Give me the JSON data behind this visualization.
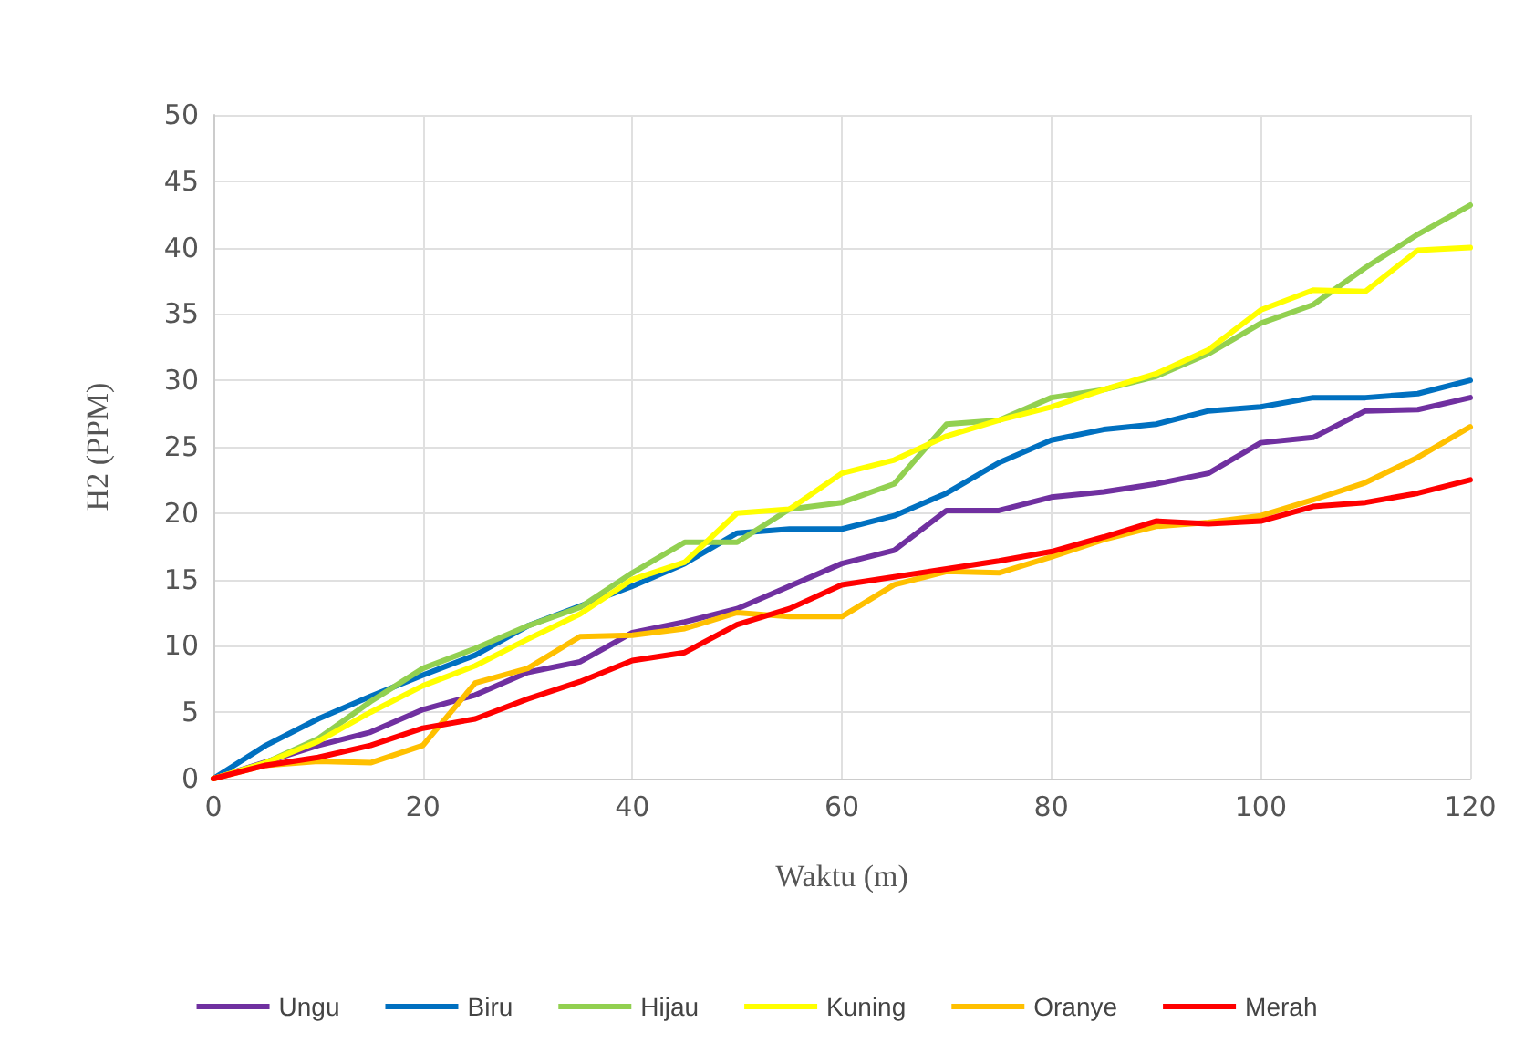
{
  "chart_data": {
    "type": "line",
    "xlabel": "Waktu (m)",
    "ylabel": "H2 (PPM)",
    "x": [
      0,
      5,
      10,
      15,
      20,
      25,
      30,
      35,
      40,
      45,
      50,
      55,
      60,
      65,
      70,
      75,
      80,
      85,
      90,
      95,
      100,
      105,
      110,
      115,
      120
    ],
    "xlim": [
      0,
      120
    ],
    "xticks": [
      0,
      20,
      40,
      60,
      80,
      100,
      120
    ],
    "ylim": [
      0,
      50
    ],
    "yticks": [
      0,
      5,
      10,
      15,
      20,
      25,
      30,
      35,
      40,
      45,
      50
    ],
    "grid": true,
    "legend": "bottom",
    "marker": "none",
    "line_style": "solid",
    "series": [
      {
        "name": "Ungu",
        "color": "#7030a0",
        "values": [
          0,
          null,
          2.5,
          3.5,
          5.2,
          6.3,
          8,
          8.8,
          11,
          11.8,
          12.8,
          14.5,
          16.2,
          17.2,
          20.2,
          20.2,
          21.2,
          21.6,
          22.2,
          23,
          25.3,
          25.7,
          27.7,
          27.8,
          28.7
        ]
      },
      {
        "name": "Biru",
        "color": "#0070c0",
        "values": [
          0,
          2.5,
          4.5,
          6.2,
          7.8,
          9.3,
          11.5,
          13,
          14.5,
          16.2,
          18.5,
          18.8,
          18.8,
          19.8,
          21.5,
          23.8,
          25.5,
          26.3,
          26.7,
          27.7,
          28,
          28.7,
          28.7,
          29,
          30
        ]
      },
      {
        "name": "Hijau",
        "color": "#92d050",
        "values": [
          0,
          1.2,
          3,
          5.8,
          8.3,
          9.8,
          11.5,
          12.9,
          15.5,
          17.8,
          17.8,
          20.3,
          20.8,
          22.2,
          26.7,
          27,
          28.7,
          29.3,
          30.3,
          32,
          34.3,
          35.7,
          38.5,
          41,
          43.2
        ]
      },
      {
        "name": "Kuning",
        "color": "#ffff00",
        "values": [
          0,
          1.2,
          2.8,
          5,
          7,
          8.5,
          10.5,
          12.4,
          15,
          16.3,
          20,
          20.3,
          23,
          24,
          25.8,
          27,
          28,
          29.3,
          30.5,
          32.3,
          35.3,
          36.8,
          36.7,
          39.8,
          40
        ]
      },
      {
        "name": "Oranye",
        "color": "#ffc000",
        "values": [
          0,
          1,
          1.3,
          1.2,
          2.5,
          7.2,
          8.3,
          10.7,
          10.8,
          11.3,
          12.5,
          12.2,
          12.2,
          14.6,
          15.6,
          15.5,
          16.7,
          18,
          19,
          19.3,
          19.8,
          21,
          22.3,
          24.2,
          26.5
        ]
      },
      {
        "name": "Merah",
        "color": "#ff0000",
        "values": [
          0,
          1,
          1.6,
          2.5,
          3.8,
          4.5,
          6,
          7.3,
          8.9,
          9.5,
          11.6,
          12.8,
          14.6,
          15.2,
          15.8,
          16.4,
          17.1,
          18.2,
          19.4,
          19.2,
          19.4,
          20.5,
          20.8,
          21.5,
          22.5
        ]
      }
    ]
  }
}
